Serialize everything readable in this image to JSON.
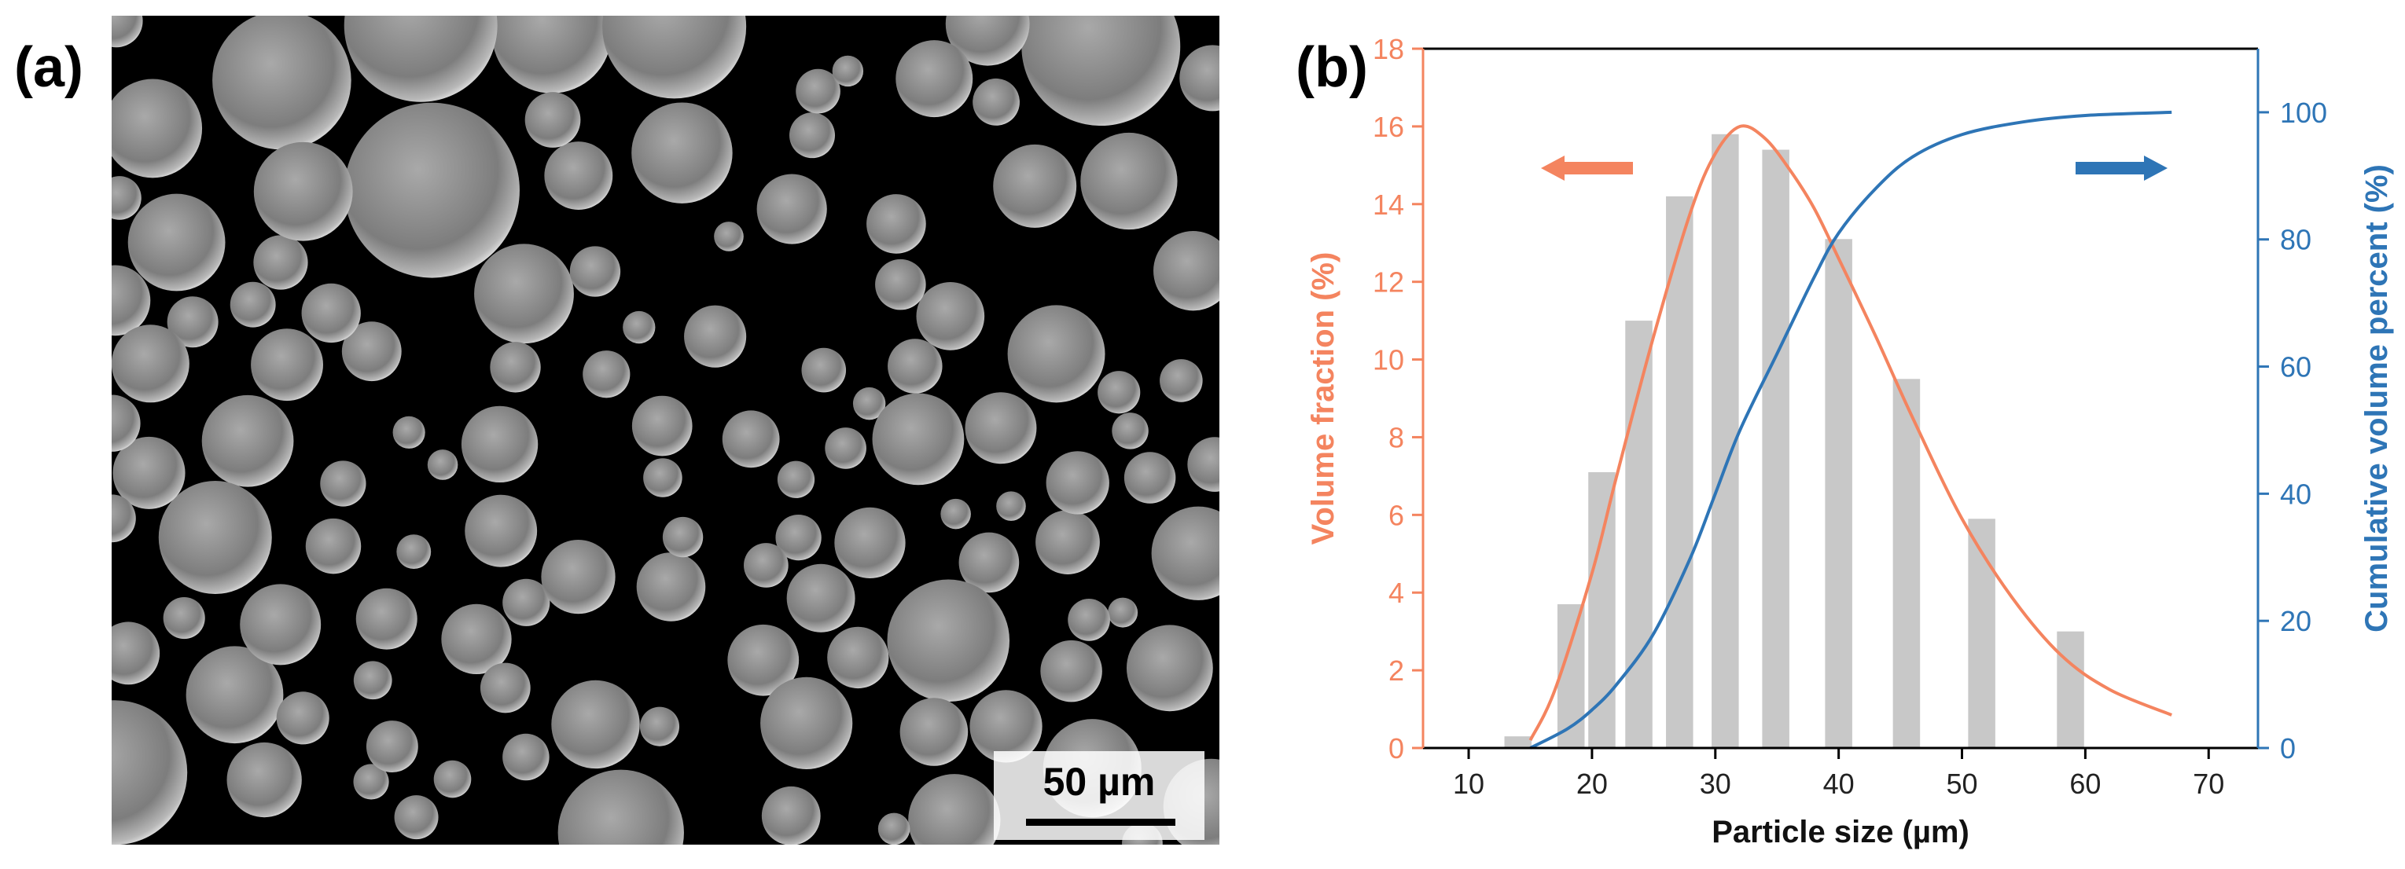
{
  "panels": [
    "(a)",
    "(b)"
  ],
  "scale_bar": "50 µm",
  "chart_data": {
    "type": "bar",
    "xlabel": "Particle size (µm)",
    "ylabel": "Volume fraction (%)",
    "y2label": "Cumulative volume percent (%)",
    "xlim": [
      6.3,
      74
    ],
    "xticks": [
      10,
      20,
      30,
      40,
      50,
      60,
      70
    ],
    "ylim": [
      0,
      18
    ],
    "yticks": [
      0,
      2,
      4,
      6,
      8,
      10,
      12,
      14,
      16,
      18
    ],
    "y2lim": [
      0,
      110
    ],
    "y2ticks": [
      0,
      20,
      40,
      60,
      80,
      100
    ],
    "series": [
      {
        "type": "bar",
        "color": "#c8c8c8",
        "x": [
          14,
          18.3,
          20.8,
          23.8,
          27.1,
          30.8,
          34.9,
          40,
          45.5,
          51.6,
          58.8
        ],
        "values": [
          0.3,
          3.7,
          7.1,
          11,
          14.2,
          15.8,
          15.4,
          13.1,
          9.5,
          5.9,
          3.0
        ]
      },
      {
        "type": "line",
        "color": "#f4845f",
        "x": [
          15,
          17,
          20,
          22,
          25,
          28,
          30,
          32,
          34,
          36,
          38,
          40,
          43,
          46,
          50,
          54,
          58,
          62,
          67
        ],
        "values": [
          0.2,
          1.5,
          4.5,
          7,
          10.6,
          13.8,
          15.3,
          16,
          15.7,
          14.9,
          13.9,
          12.6,
          10.6,
          8.5,
          5.9,
          3.9,
          2.4,
          1.5,
          0.85
        ]
      },
      {
        "type": "line",
        "axis": "y2",
        "color": "#2e75b6",
        "x": [
          15,
          18,
          20,
          22,
          25,
          28,
          30,
          32,
          35,
          38,
          40,
          43,
          46,
          50,
          55,
          60,
          67
        ],
        "values": [
          0,
          3,
          6,
          10,
          18,
          30,
          40,
          50,
          62,
          74,
          81,
          88,
          93,
          96.5,
          98.5,
          99.5,
          100
        ]
      }
    ]
  }
}
